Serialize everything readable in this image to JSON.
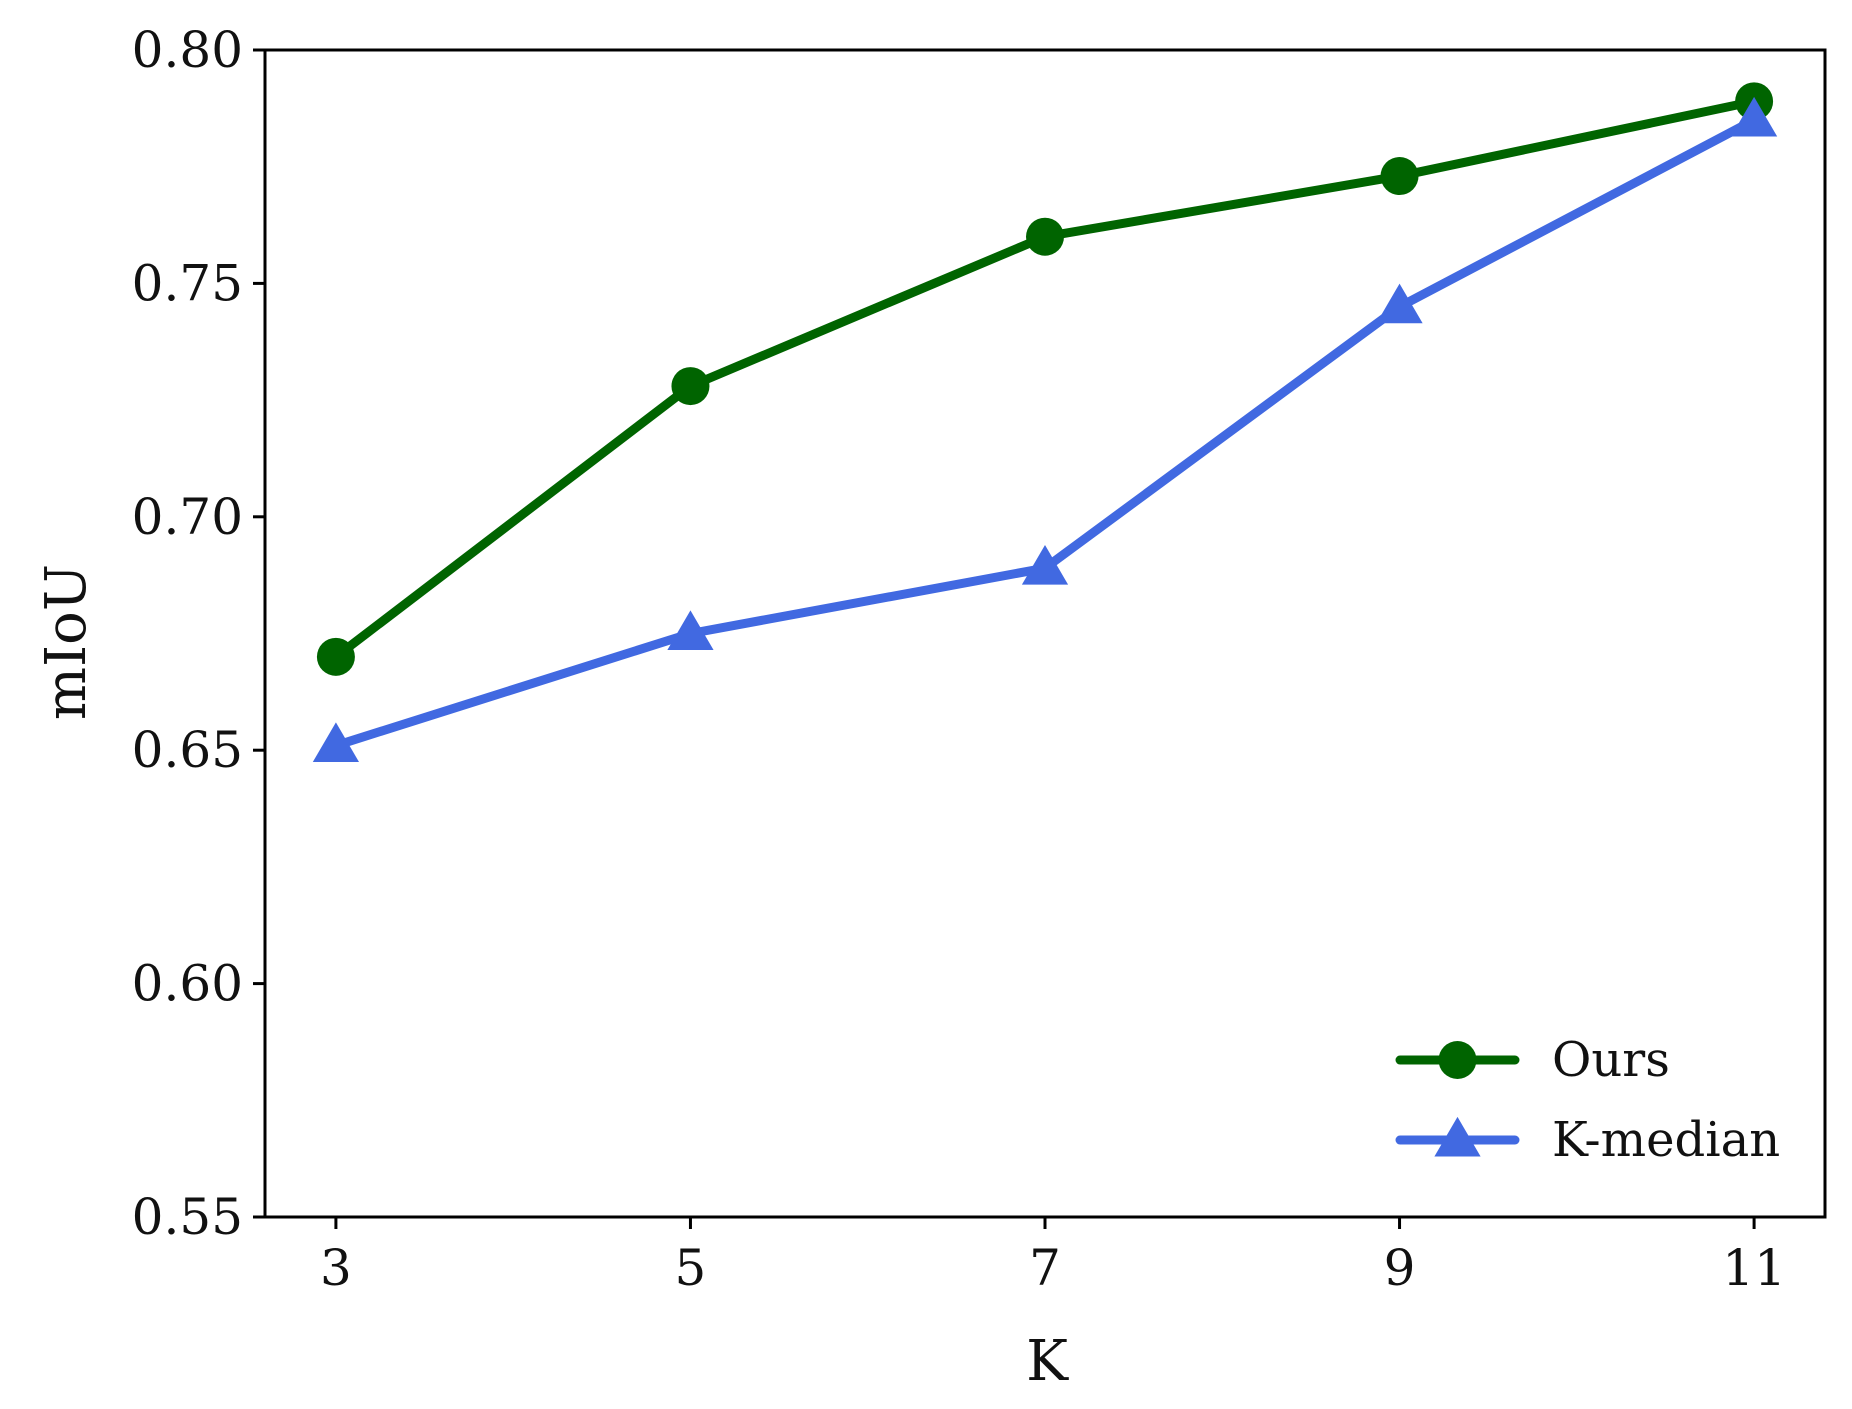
{
  "chart_data": {
    "type": "line",
    "title": "",
    "xlabel": "K",
    "ylabel": "mIoU",
    "x": [
      3,
      5,
      7,
      9,
      11
    ],
    "x_tick_labels": [
      "3",
      "5",
      "7",
      "9",
      "11"
    ],
    "xlim": [
      2.6,
      11.4
    ],
    "ylim": [
      0.55,
      0.8
    ],
    "y_ticks": [
      0.55,
      0.6,
      0.65,
      0.7,
      0.75,
      0.8
    ],
    "y_tick_labels": [
      "0.55",
      "0.60",
      "0.65",
      "0.70",
      "0.75",
      "0.80"
    ],
    "grid": false,
    "legend_position": "lower-right",
    "series": [
      {
        "name": "Ours",
        "values": [
          0.67,
          0.728,
          0.76,
          0.773,
          0.789
        ],
        "color": "#006400",
        "marker": "circle"
      },
      {
        "name": "K-median",
        "values": [
          0.651,
          0.675,
          0.689,
          0.745,
          0.785
        ],
        "color": "#4169E1",
        "marker": "triangle"
      }
    ]
  }
}
